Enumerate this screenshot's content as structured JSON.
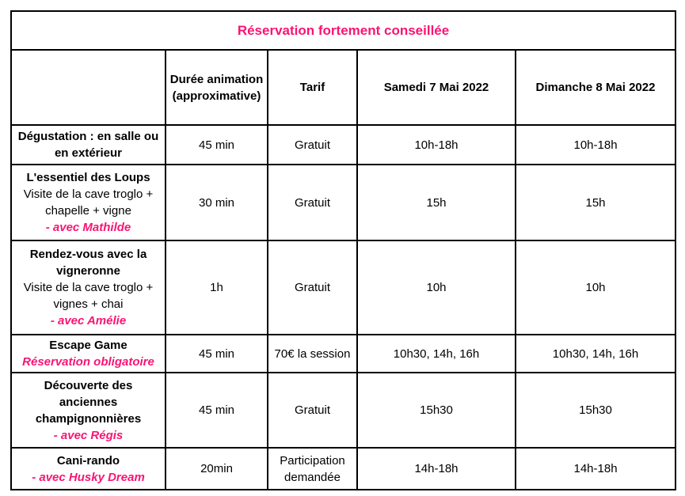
{
  "title": "Réservation fortement conseillée",
  "colors": {
    "accent_pink": "#fa1473",
    "text": "#000000",
    "border": "#000000",
    "background": "#ffffff"
  },
  "columns": [
    {
      "key": "activity",
      "label": ""
    },
    {
      "key": "duration",
      "label": "Durée animation (approximative)"
    },
    {
      "key": "tarif",
      "label": "Tarif"
    },
    {
      "key": "saturday",
      "label": "Samedi 7 Mai 2022"
    },
    {
      "key": "sunday",
      "label": "Dimanche 8 Mai 2022"
    }
  ],
  "rows": [
    {
      "activity": [
        {
          "text": "Dégustation : en salle ou en extérieur",
          "style": "title"
        }
      ],
      "duration": "45 min",
      "tarif": "Gratuit",
      "saturday": "10h-18h",
      "sunday": "10h-18h"
    },
    {
      "activity": [
        {
          "text": "L'essentiel des Loups",
          "style": "title"
        },
        {
          "text": "Visite de la cave troglo + chapelle + vigne",
          "style": "desc"
        },
        {
          "text": "- avec Mathilde",
          "style": "pink"
        }
      ],
      "duration": "30 min",
      "tarif": "Gratuit",
      "saturday": "15h",
      "sunday": "15h"
    },
    {
      "activity": [
        {
          "text": "Rendez-vous avec la vigneronne",
          "style": "title"
        },
        {
          "text": "Visite de la cave troglo + vignes + chai",
          "style": "desc"
        },
        {
          "text": "- avec Amélie",
          "style": "pink"
        }
      ],
      "duration": "1h",
      "tarif": "Gratuit",
      "saturday": "10h",
      "sunday": "10h"
    },
    {
      "activity": [
        {
          "text": "Escape Game",
          "style": "title"
        },
        {
          "text": "Réservation obligatoire",
          "style": "pink"
        }
      ],
      "duration": "45 min",
      "tarif": "70€ la session",
      "saturday": "10h30, 14h, 16h",
      "sunday": "10h30, 14h, 16h"
    },
    {
      "activity": [
        {
          "text": "Découverte des anciennes champignonnières",
          "style": "title"
        },
        {
          "text": "- avec Régis",
          "style": "pink"
        }
      ],
      "duration": "45 min",
      "tarif": "Gratuit",
      "saturday": "15h30",
      "sunday": "15h30"
    },
    {
      "activity": [
        {
          "text": "Cani-rando",
          "style": "title"
        },
        {
          "text": "- avec Husky Dream",
          "style": "pink"
        }
      ],
      "duration": "20min",
      "tarif": "Participation demandée",
      "saturday": "14h-18h",
      "sunday": "14h-18h"
    }
  ]
}
